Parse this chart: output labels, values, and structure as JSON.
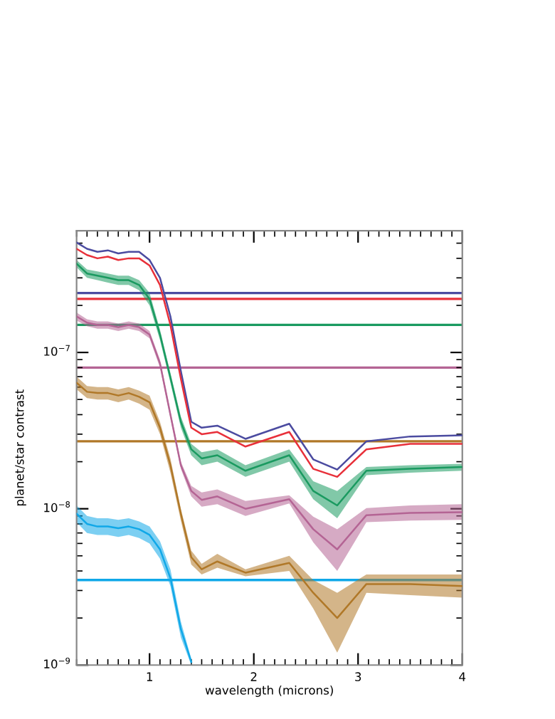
{
  "chart_data": {
    "type": "line",
    "xlabel": "wavelength (microns)",
    "ylabel": "planet/star contrast",
    "log": "y",
    "x": [
      0.3,
      0.4,
      0.5,
      0.6,
      0.7,
      0.8,
      0.9,
      1.0,
      1.1,
      1.2,
      1.3,
      1.4,
      1.5,
      1.65,
      1.92,
      2.34,
      2.57,
      2.8,
      3.08,
      3.5,
      4.0
    ],
    "xlim": [
      0.3,
      4
    ],
    "xticks": [
      1,
      2,
      3,
      4
    ],
    "ylim": [
      1e-09,
      6e-07
    ],
    "yticks": [
      {
        "value": 1e-09,
        "label": "10$^{−9}$"
      },
      {
        "value": 1e-08,
        "label": "10$^{−8}$"
      },
      {
        "value": 1e-07,
        "label": "10$^{−7}$"
      }
    ],
    "grid": false,
    "marker": "none",
    "line_style": "solid",
    "series": [
      {
        "color": "#4b4ba0",
        "values": [
          5.05e-07,
          4.6e-07,
          4.4e-07,
          4.5e-07,
          4.3e-07,
          4.4e-07,
          4.4e-07,
          3.9e-07,
          3e-07,
          1.7e-07,
          7.6e-08,
          3.6e-08,
          3.3e-08,
          3.4e-08,
          2.8e-08,
          3.5e-08,
          2.07e-08,
          1.78e-08,
          2.7e-08,
          2.9e-08,
          2.95e-08
        ]
      },
      {
        "color": "#e8303a",
        "values": [
          4.6e-07,
          4.2e-07,
          4e-07,
          4.1e-07,
          3.9e-07,
          4e-07,
          4e-07,
          3.6e-07,
          2.7e-07,
          1.5e-07,
          6.8e-08,
          3.3e-08,
          3e-08,
          3.1e-08,
          2.5e-08,
          3.1e-08,
          1.8e-08,
          1.6e-08,
          2.4e-08,
          2.6e-08,
          2.6e-08
        ]
      },
      {
        "color": "#1a9a60",
        "values": [
          3.7e-07,
          3.2e-07,
          3.1e-07,
          3e-07,
          2.9e-07,
          2.9e-07,
          2.7e-07,
          2.2e-07,
          1.3e-07,
          6.9e-08,
          3.6e-08,
          2.4e-08,
          2.1e-08,
          2.2e-08,
          1.75e-08,
          2.2e-08,
          1.3e-08,
          1.05e-08,
          1.75e-08,
          1.8e-08,
          1.85e-08
        ],
        "lower": [
          3.5e-07,
          3e-07,
          2.9e-07,
          2.8e-07,
          2.7e-07,
          2.7e-07,
          2.5e-07,
          2e-07,
          1.2e-07,
          6.4e-08,
          3.3e-08,
          2.2e-08,
          1.9e-08,
          2e-08,
          1.6e-08,
          2e-08,
          1.15e-08,
          8.7e-09,
          1.64e-08,
          1.7e-08,
          1.75e-08
        ],
        "upper": [
          3.9e-07,
          3.4e-07,
          3.3e-07,
          3.2e-07,
          3.1e-07,
          3.1e-07,
          2.9e-07,
          2.4e-07,
          1.4e-07,
          7.4e-08,
          3.9e-08,
          2.6e-08,
          2.3e-08,
          2.4e-08,
          1.9e-08,
          2.4e-08,
          1.5e-08,
          1.3e-08,
          1.85e-08,
          1.9e-08,
          1.94e-08
        ]
      },
      {
        "color": "#b46494",
        "values": [
          1.7e-07,
          1.55e-07,
          1.5e-07,
          1.5e-07,
          1.45e-07,
          1.5e-07,
          1.45e-07,
          1.3e-07,
          8.5e-08,
          4e-08,
          1.9e-08,
          1.3e-08,
          1.14e-08,
          1.2e-08,
          1e-08,
          1.15e-08,
          7.4e-09,
          5.5e-09,
          9.1e-09,
          9.4e-09,
          9.5e-09
        ],
        "lower": [
          1.6e-07,
          1.47e-07,
          1.42e-07,
          1.42e-07,
          1.37e-07,
          1.42e-07,
          1.37e-07,
          1.23e-07,
          8e-08,
          3.8e-08,
          1.8e-08,
          1.2e-08,
          1.03e-08,
          1.07e-08,
          9e-09,
          1.08e-08,
          6.1e-09,
          4e-09,
          8.2e-09,
          8.4e-09,
          8.5e-09
        ],
        "upper": [
          1.8e-07,
          1.63e-07,
          1.58e-07,
          1.58e-07,
          1.53e-07,
          1.58e-07,
          1.53e-07,
          1.37e-07,
          9e-08,
          4.2e-08,
          2e-08,
          1.4e-08,
          1.27e-08,
          1.33e-08,
          1.12e-08,
          1.22e-08,
          8.9e-09,
          7.4e-09,
          1.01e-08,
          1.05e-08,
          1.07e-08
        ]
      },
      {
        "color": "#b07828",
        "values": [
          6.4e-08,
          5.6e-08,
          5.5e-08,
          5.5e-08,
          5.3e-08,
          5.5e-08,
          5.2e-08,
          4.8e-08,
          3.3e-08,
          1.9e-08,
          9.3e-09,
          4.9e-09,
          4.1e-09,
          4.6e-09,
          3.9e-09,
          4.5e-09,
          2.9e-09,
          2e-09,
          3.3e-09,
          3.3e-09,
          3.2e-09
        ],
        "lower": [
          5.8e-08,
          5.1e-08,
          5e-08,
          5e-08,
          4.8e-08,
          5e-08,
          4.7e-08,
          4.3e-08,
          3e-08,
          1.7e-08,
          8.4e-09,
          4.4e-09,
          3.8e-09,
          4.2e-09,
          3.7e-09,
          4e-09,
          2.3e-09,
          1.2e-09,
          2.9e-09,
          2.8e-09,
          2.7e-09
        ],
        "upper": [
          7e-08,
          6.1e-08,
          6e-08,
          6e-08,
          5.8e-08,
          6e-08,
          5.7e-08,
          5.3e-08,
          3.6e-08,
          2.1e-08,
          1e-08,
          5.4e-09,
          4.45e-09,
          5.15e-09,
          4.1e-09,
          5e-09,
          3.5e-09,
          2.9e-09,
          3.8e-09,
          3.8e-09,
          3.8e-09
        ]
      },
      {
        "color": "#10a8e8",
        "values": [
          9.3e-09,
          8e-09,
          7.7e-09,
          7.7e-09,
          7.5e-09,
          7.7e-09,
          7.4e-09,
          6.8e-09,
          5.5e-09,
          3.6e-09,
          1.7e-09,
          1.05e-09,
          null,
          null,
          null,
          null,
          null,
          null,
          null,
          null,
          null
        ],
        "lower": [
          8.2e-09,
          7e-09,
          6.8e-09,
          6.8e-09,
          6.6e-09,
          6.8e-09,
          6.5e-09,
          6e-09,
          4.8e-09,
          3.2e-09,
          1.5e-09,
          1e-09,
          null,
          null,
          null,
          null,
          null,
          null,
          null,
          null,
          null
        ],
        "upper": [
          1.05e-08,
          9e-09,
          8.7e-09,
          8.7e-09,
          8.5e-09,
          8.7e-09,
          8.3e-09,
          7.7e-09,
          6.2e-09,
          4.1e-09,
          1.9e-09,
          1.1e-09,
          null,
          null,
          null,
          null,
          null,
          null,
          null,
          null,
          null
        ]
      }
    ],
    "ref_lines": [
      {
        "axis": "y",
        "value": 2.4e-07,
        "color": "#4b4ba0"
      },
      {
        "axis": "y",
        "value": 2.2e-07,
        "color": "#e8303a"
      },
      {
        "axis": "y",
        "value": 1.5e-07,
        "color": "#1a9a60"
      },
      {
        "axis": "y",
        "value": 8e-08,
        "color": "#b46494"
      },
      {
        "axis": "y",
        "value": 2.7e-08,
        "color": "#b07828"
      },
      {
        "axis": "y",
        "value": 3.5e-09,
        "color": "#10a8e8"
      }
    ]
  }
}
